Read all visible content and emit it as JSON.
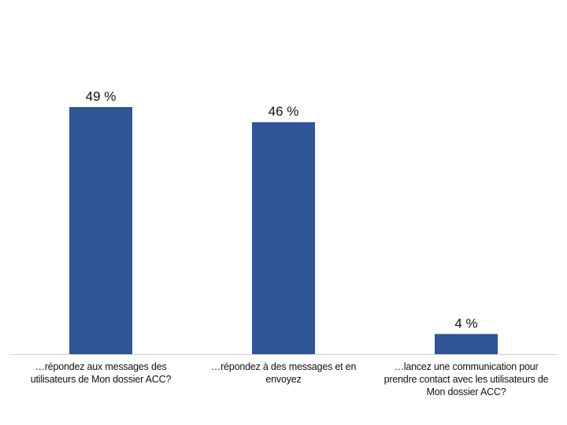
{
  "chart_data": {
    "type": "bar",
    "categories": [
      "…répondez aux messages des utilisateurs de Mon dossier ACC?",
      "…répondez à des messages et en envoyez",
      "…lancez une communication pour prendre contact avec les utilisateurs de Mon dossier ACC?"
    ],
    "values": [
      49,
      46,
      4
    ],
    "data_labels": [
      "49 %",
      "46 %",
      "4 %"
    ],
    "title": "",
    "xlabel": "",
    "ylabel": "",
    "ylim": [
      0,
      49
    ],
    "grid": false,
    "bar_color": "#2F5597"
  }
}
